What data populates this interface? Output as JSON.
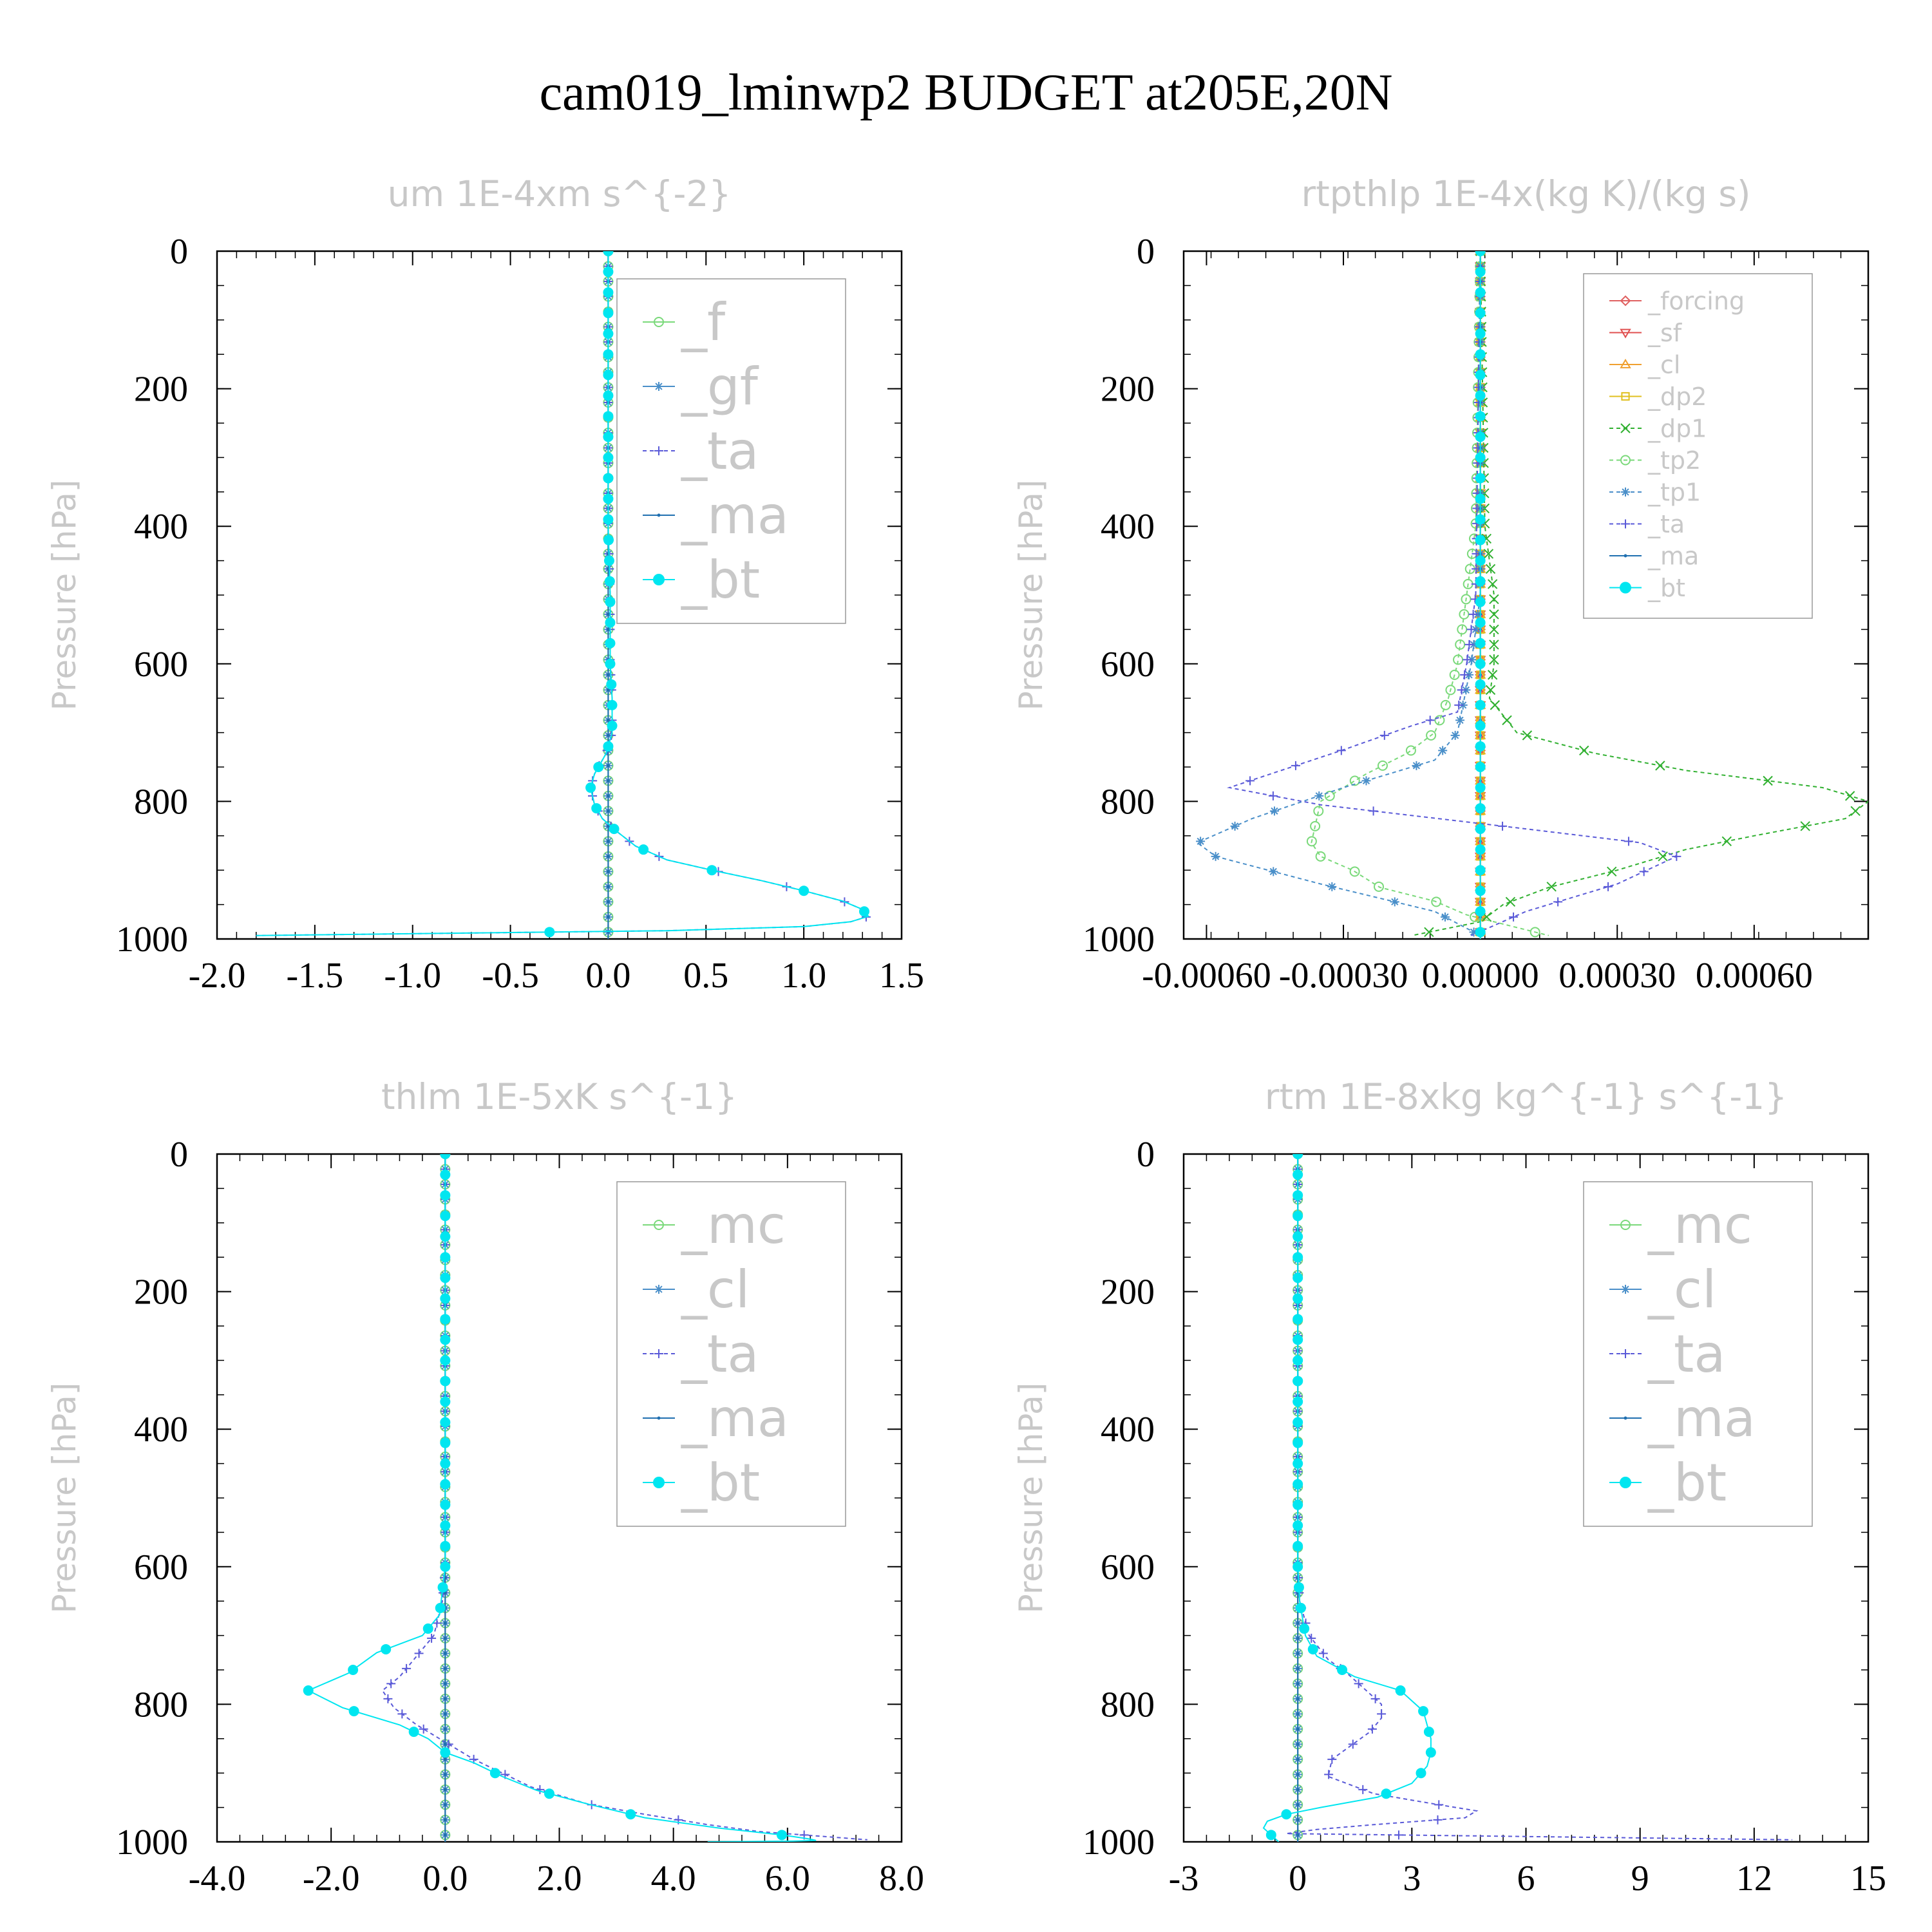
{
  "figure": {
    "title": "cam019_lminwp2  BUDGET at205E,20N"
  },
  "chart_data": [
    {
      "type": "line",
      "title": "um   1E-4xm s^{-2}",
      "xlabel": "",
      "ylabel": "Pressure [hPa]",
      "xlim": [
        -2.0,
        1.5
      ],
      "ylim": [
        1000,
        0
      ],
      "xticks": [
        "-2.0",
        "-1.5",
        "-1.0",
        "-0.5",
        "0.0",
        "0.5",
        "1.0",
        "1.5"
      ],
      "yticks": [
        "0",
        "200",
        "400",
        "600",
        "800",
        "1000"
      ],
      "legend_position": "top-right",
      "series": [
        {
          "name": "_f",
          "color": "#7ad97a",
          "marker": "circle-open",
          "dash": "",
          "x": [
            0,
            0,
            0,
            0,
            0,
            0
          ],
          "y": [
            0,
            200,
            400,
            600,
            800,
            1000
          ]
        },
        {
          "name": "_gf",
          "color": "#4a8fc9",
          "marker": "star",
          "dash": "",
          "x": [
            0,
            0,
            0,
            0,
            0,
            0
          ],
          "y": [
            0,
            200,
            400,
            600,
            800,
            1000
          ]
        },
        {
          "name": "_ta",
          "color": "#5a5ad8",
          "marker": "plus",
          "dash": "6,5",
          "x": [
            0,
            0,
            0,
            0,
            0,
            0.01,
            0.01,
            0.02,
            0.02,
            -0.01,
            -0.07,
            -0.09,
            -0.07,
            -0.03,
            0.05,
            0.14,
            0.3,
            0.53,
            0.78,
            1.0,
            1.2,
            1.3,
            1.33,
            1.24,
            1.0,
            0.3,
            -1.8
          ],
          "y": [
            0,
            100,
            200,
            300,
            400,
            500,
            600,
            650,
            700,
            730,
            760,
            780,
            805,
            825,
            845,
            865,
            885,
            900,
            915,
            930,
            945,
            957,
            967,
            975,
            982,
            988,
            995
          ]
        },
        {
          "name": "_ma",
          "color": "#1f6fb0",
          "marker": "dot",
          "dash": "",
          "x": [
            0,
            0,
            0,
            0,
            0,
            0,
            0
          ],
          "y": [
            0,
            200,
            400,
            600,
            800,
            900,
            1000
          ]
        },
        {
          "name": "_bt",
          "color": "#00e6f0",
          "marker": "filled-circle",
          "dash": "",
          "x": [
            0,
            0,
            0,
            0,
            0,
            0.01,
            0.01,
            0.02,
            0.02,
            -0.01,
            -0.07,
            -0.09,
            -0.07,
            -0.03,
            0.05,
            0.14,
            0.3,
            0.53,
            0.78,
            1.0,
            1.2,
            1.3,
            1.33,
            1.24,
            1.0,
            0.3,
            -1.8
          ],
          "y": [
            0,
            100,
            200,
            300,
            400,
            500,
            600,
            650,
            700,
            730,
            760,
            780,
            805,
            825,
            845,
            865,
            885,
            900,
            915,
            930,
            945,
            957,
            967,
            975,
            982,
            988,
            995
          ]
        }
      ]
    },
    {
      "type": "line",
      "title": "rtpthlp   1E-4x(kg K)/(kg s)",
      "xlabel": "",
      "ylabel": "Pressure [hPa]",
      "xlim": [
        -0.00065,
        0.00085
      ],
      "ylim": [
        1000,
        0
      ],
      "xticks": [
        "-0.00060",
        "-0.00030",
        "0.00000",
        "0.00030",
        "0.00060"
      ],
      "yticks": [
        "0",
        "200",
        "400",
        "600",
        "800",
        "1000"
      ],
      "legend_position": "top-right",
      "series": [
        {
          "name": "_forcing",
          "color": "#e06060",
          "marker": "diamond",
          "dash": "",
          "x": [
            0,
            0,
            0,
            0,
            0,
            0
          ],
          "y": [
            0,
            200,
            400,
            600,
            800,
            1000
          ]
        },
        {
          "name": "_sf",
          "color": "#e05050",
          "marker": "triangle-down",
          "dash": "",
          "x": [
            0,
            0,
            0,
            0,
            0,
            0
          ],
          "y": [
            0,
            200,
            400,
            600,
            800,
            1000
          ]
        },
        {
          "name": "_cl",
          "color": "#f0a030",
          "marker": "triangle-up",
          "dash": "",
          "x": [
            0,
            0,
            0,
            0,
            0,
            0
          ],
          "y": [
            0,
            200,
            400,
            600,
            800,
            1000
          ]
        },
        {
          "name": "_dp2",
          "color": "#e0c020",
          "marker": "square",
          "dash": "",
          "x": [
            0,
            0,
            0,
            0,
            0,
            0
          ],
          "y": [
            0,
            200,
            400,
            600,
            800,
            1000
          ]
        },
        {
          "name": "_dp1",
          "color": "#30b030",
          "marker": "cross",
          "dash": "6,5",
          "x": [
            0,
            1e-05,
            3e-05,
            3e-05,
            2e-05,
            8e-05,
            0.00025,
            0.00045,
            0.00075,
            0.00085,
            0.0008,
            0.0006,
            0.00045,
            0.0003,
            0.00015,
            5e-05,
            0,
            -0.00015
          ],
          "y": [
            0,
            400,
            500,
            600,
            650,
            700,
            730,
            755,
            780,
            800,
            825,
            850,
            870,
            900,
            925,
            950,
            975,
            995
          ]
        },
        {
          "name": "_tp2",
          "color": "#7ad97a",
          "marker": "circle-open",
          "dash": "6,5",
          "x": [
            0,
            -1e-05,
            -3e-05,
            -5e-05,
            -7e-05,
            -0.0001,
            -0.00016,
            -0.00025,
            -0.00035,
            -0.00037,
            -0.00035,
            -0.00028,
            -0.00022,
            -0.0001,
            -3e-05,
            0.00015
          ],
          "y": [
            0,
            400,
            500,
            600,
            650,
            700,
            730,
            760,
            800,
            860,
            880,
            900,
            925,
            945,
            965,
            995
          ]
        },
        {
          "name": "_tp1",
          "color": "#4a8fc9",
          "marker": "star",
          "dash": "6,5",
          "x": [
            0,
            0,
            -2e-05,
            -5e-05,
            -0.0001,
            -0.0003,
            -0.0005,
            -0.00062,
            -0.00058,
            -0.00035,
            -0.0001,
            0
          ],
          "y": [
            0,
            500,
            600,
            700,
            740,
            780,
            825,
            860,
            880,
            920,
            960,
            995
          ]
        },
        {
          "name": "_ta",
          "color": "#5a5ad8",
          "marker": "plus",
          "dash": "6,5",
          "x": [
            0,
            -1e-05,
            -3e-05,
            -5e-05,
            -0.00015,
            -0.0003,
            -0.00055,
            -0.00035,
            0.0001,
            0.00035,
            0.00043,
            0.0003,
            0.0001,
            -2e-05
          ],
          "y": [
            0,
            500,
            600,
            670,
            690,
            725,
            780,
            805,
            840,
            860,
            880,
            920,
            960,
            995
          ]
        },
        {
          "name": "_ma",
          "color": "#1f6fb0",
          "marker": "dot",
          "dash": "",
          "x": [
            0,
            0,
            0,
            0,
            0,
            0
          ],
          "y": [
            0,
            200,
            400,
            600,
            800,
            1000
          ]
        },
        {
          "name": "_bt",
          "color": "#00e6f0",
          "marker": "filled-circle",
          "dash": "",
          "x": [
            0,
            0,
            0,
            0,
            0,
            0
          ],
          "y": [
            0,
            200,
            400,
            600,
            800,
            1000
          ]
        }
      ]
    },
    {
      "type": "line",
      "title": "thlm   1E-5xK s^{-1}",
      "xlabel": "",
      "ylabel": "Pressure [hPa]",
      "xlim": [
        -4.0,
        8.0
      ],
      "ylim": [
        1000,
        0
      ],
      "xticks": [
        "-4.0",
        "-2.0",
        "0.0",
        "2.0",
        "4.0",
        "6.0",
        "8.0"
      ],
      "yticks": [
        "0",
        "200",
        "400",
        "600",
        "800",
        "1000"
      ],
      "legend_position": "top-right",
      "series": [
        {
          "name": "_mc",
          "color": "#7ad97a",
          "marker": "circle-open",
          "dash": "",
          "x": [
            0,
            0,
            0,
            0,
            0,
            0
          ],
          "y": [
            0,
            200,
            400,
            600,
            800,
            1000
          ]
        },
        {
          "name": "_cl",
          "color": "#4a8fc9",
          "marker": "star",
          "dash": "",
          "x": [
            0,
            0,
            0,
            0,
            0,
            0
          ],
          "y": [
            0,
            200,
            400,
            600,
            800,
            1000
          ]
        },
        {
          "name": "_ta",
          "color": "#5a5ad8",
          "marker": "plus",
          "dash": "6,5",
          "x": [
            0,
            0,
            0,
            0,
            -0.05,
            -0.2,
            -0.5,
            -0.8,
            -1.1,
            -0.9,
            -0.5,
            0.1,
            0.5,
            1.0,
            1.5,
            2.5,
            3.5,
            4.6,
            5.5,
            7.4
          ],
          "y": [
            0,
            200,
            400,
            600,
            650,
            700,
            730,
            760,
            780,
            805,
            830,
            860,
            880,
            900,
            920,
            945,
            960,
            975,
            985,
            997
          ]
        },
        {
          "name": "_ma",
          "color": "#1f6fb0",
          "marker": "dot",
          "dash": "",
          "x": [
            0,
            0,
            0,
            0,
            0,
            0
          ],
          "y": [
            0,
            200,
            400,
            600,
            800,
            1000
          ]
        },
        {
          "name": "_bt",
          "color": "#00e6f0",
          "marker": "filled-circle",
          "dash": "",
          "x": [
            0,
            0,
            0,
            0,
            0,
            0,
            0,
            -0.1,
            -0.4,
            -1.2,
            -1.7,
            -2.4,
            -1.8,
            -0.8,
            -0.3,
            0,
            0.5,
            1.0,
            1.6,
            2.5,
            3.5,
            4.8,
            5.9,
            6.4,
            6.5,
            6.1,
            4.6
          ],
          "y": [
            0,
            100,
            200,
            300,
            400,
            500,
            600,
            670,
            700,
            725,
            755,
            780,
            805,
            830,
            850,
            870,
            885,
            905,
            925,
            945,
            965,
            980,
            990,
            996,
            998,
            999,
            1000
          ]
        }
      ]
    },
    {
      "type": "line",
      "title": "rtm   1E-8xkg kg^{-1} s^{-1}",
      "xlabel": "",
      "ylabel": "Pressure [hPa]",
      "xlim": [
        -3,
        15
      ],
      "ylim": [
        1000,
        0
      ],
      "xticks": [
        "-3",
        "0",
        "3",
        "6",
        "9",
        "12",
        "15"
      ],
      "yticks": [
        "0",
        "200",
        "400",
        "600",
        "800",
        "1000"
      ],
      "legend_position": "top-right",
      "series": [
        {
          "name": "_mc",
          "color": "#7ad97a",
          "marker": "circle-open",
          "dash": "",
          "x": [
            0,
            0,
            0,
            0,
            0,
            0
          ],
          "y": [
            0,
            200,
            400,
            600,
            800,
            1000
          ]
        },
        {
          "name": "_cl",
          "color": "#4a8fc9",
          "marker": "star",
          "dash": "",
          "x": [
            0,
            0,
            0,
            0,
            0,
            0
          ],
          "y": [
            0,
            200,
            400,
            600,
            800,
            1000
          ]
        },
        {
          "name": "_ta",
          "color": "#5a5ad8",
          "marker": "plus",
          "dash": "6,5",
          "x": [
            0,
            0,
            0,
            0,
            0.05,
            0.3,
            0.8,
            1.3,
            1.8,
            2.2,
            2.2,
            1.9,
            1.4,
            0.9,
            0.8,
            2.0,
            3.6,
            4.7,
            4.4,
            2.0,
            0.5,
            -0.3,
            13.0
          ],
          "y": [
            0,
            200,
            400,
            600,
            650,
            700,
            735,
            755,
            780,
            800,
            820,
            840,
            860,
            880,
            905,
            930,
            945,
            955,
            965,
            975,
            982,
            988,
            997
          ]
        },
        {
          "name": "_ma",
          "color": "#1f6fb0",
          "marker": "dot",
          "dash": "",
          "x": [
            0,
            0,
            0,
            0,
            0,
            0
          ],
          "y": [
            0,
            200,
            400,
            600,
            800,
            1000
          ]
        },
        {
          "name": "_bt",
          "color": "#00e6f0",
          "marker": "filled-circle",
          "dash": "",
          "x": [
            0,
            0,
            0,
            0,
            0,
            0,
            0,
            0.05,
            0.2,
            0.5,
            1.5,
            2.7,
            3.3,
            3.4,
            3.5,
            3.5,
            3.4,
            3.0,
            2.1,
            0.6,
            -0.3,
            -0.8,
            -0.9,
            -0.7,
            -0.5
          ],
          "y": [
            0,
            100,
            200,
            300,
            400,
            500,
            600,
            650,
            700,
            730,
            760,
            780,
            810,
            830,
            850,
            870,
            890,
            915,
            935,
            950,
            960,
            970,
            980,
            990,
            1000
          ]
        }
      ]
    }
  ]
}
